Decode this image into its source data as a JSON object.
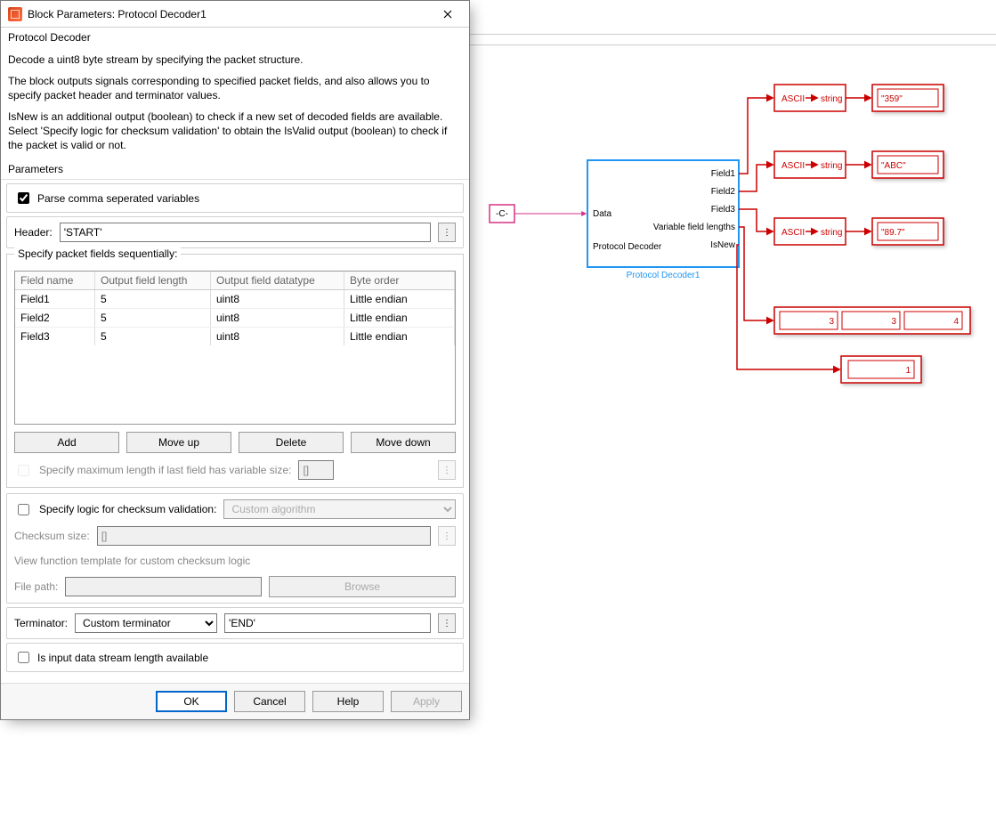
{
  "dialog": {
    "title": "Block Parameters: Protocol Decoder1",
    "block_name": "Protocol Decoder",
    "desc1": "Decode a uint8 byte stream by specifying the packet structure.",
    "desc2": "The block outputs signals corresponding to specified packet fields, and also allows you to specify packet header and terminator values.",
    "desc3": "IsNew is an additional output (boolean) to check if a new set of decoded fields are available. Select 'Specify logic for checksum validation' to obtain the IsValid output (boolean) to check if the packet is valid or not.",
    "parameters_label": "Parameters",
    "parse_csv_label": "Parse comma seperated variables",
    "parse_csv_checked": true,
    "header_label": "Header:",
    "header_value": "'START'",
    "fields_legend": "Specify packet fields sequentially:",
    "table_headers": [
      "Field name",
      "Output field length",
      "Output field datatype",
      "Byte order"
    ],
    "table_rows": [
      [
        "Field1",
        "5",
        "uint8",
        "Little endian"
      ],
      [
        "Field2",
        "5",
        "uint8",
        "Little endian"
      ],
      [
        "Field3",
        "5",
        "uint8",
        "Little endian"
      ]
    ],
    "btn_add": "Add",
    "btn_up": "Move up",
    "btn_del": "Delete",
    "btn_down": "Move down",
    "maxlen_label": "Specify maximum length if last field has variable size:",
    "maxlen_value": "[]",
    "checksum_label": "Specify logic for checksum validation:",
    "checksum_algo": "Custom algorithm",
    "checksum_size_label": "Checksum size:",
    "checksum_size_value": "[]",
    "view_template_link": "View function template for custom checksum logic",
    "filepath_label": "File path:",
    "browse_btn": "Browse",
    "terminator_label": "Terminator:",
    "terminator_select": "Custom terminator",
    "terminator_value": "'END'",
    "input_len_label": "Is input data stream length available",
    "ok": "OK",
    "cancel": "Cancel",
    "help": "Help",
    "apply": "Apply"
  },
  "diagram": {
    "const_block": "-C-",
    "decoder": {
      "input": "Data",
      "outputs": [
        "Field1",
        "Field2",
        "Field3",
        "Variable field lengths",
        "IsNew"
      ],
      "footer": "Protocol Decoder",
      "name_under": "Protocol Decoder1"
    },
    "ascii": {
      "left": "ASCII",
      "right": "string",
      "arrow_color": "#cc0000"
    },
    "sinks": [
      "\"359\"",
      "\"ABC\"",
      "\"89.7\""
    ],
    "varlens": [
      "3",
      "3",
      "4"
    ],
    "isnew": "1",
    "colors": {
      "red": "#cc0000",
      "blue": "#2196f3",
      "pink": "#d63384"
    }
  }
}
